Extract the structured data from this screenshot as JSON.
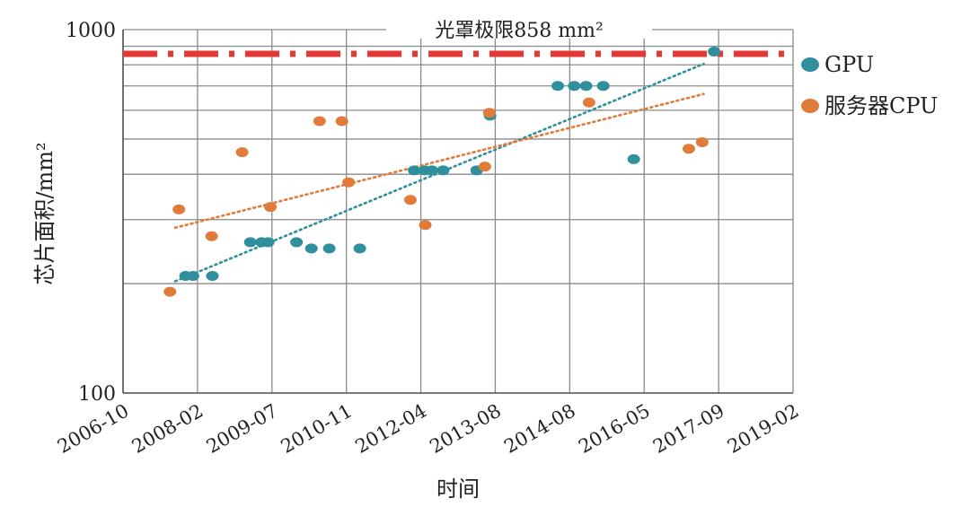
{
  "chart_data": {
    "type": "scatter",
    "title": "",
    "xlabel": "时间",
    "ylabel": "芯片面积/mm²",
    "yscale": "log",
    "ylim": [
      100,
      1000
    ],
    "y_tick_labels": [
      "100",
      "1000"
    ],
    "x_tick_labels": [
      "2006-10",
      "2008-02",
      "2009-07",
      "2010-11",
      "2012-04",
      "2013-08",
      "2014-08",
      "2016-05",
      "2017-09",
      "2019-02"
    ],
    "xlim_index": [
      0,
      9
    ],
    "grid": true,
    "legend_position": "right",
    "reference_line": {
      "label": "光罩极限858 mm²",
      "value": 858,
      "color": "#e53935"
    },
    "series": [
      {
        "name": "GPU",
        "color": "#2f8f9d",
        "points": [
          [
            0.84,
            210
          ],
          [
            0.94,
            210
          ],
          [
            1.2,
            210
          ],
          [
            1.71,
            260
          ],
          [
            1.86,
            260
          ],
          [
            1.95,
            260
          ],
          [
            2.33,
            260
          ],
          [
            2.53,
            250
          ],
          [
            2.77,
            250
          ],
          [
            3.18,
            250
          ],
          [
            3.91,
            410
          ],
          [
            4.05,
            410
          ],
          [
            4.15,
            410
          ],
          [
            4.3,
            410
          ],
          [
            4.75,
            410
          ],
          [
            4.93,
            580
          ],
          [
            5.84,
            700
          ],
          [
            6.06,
            700
          ],
          [
            6.22,
            700
          ],
          [
            6.45,
            700
          ],
          [
            6.86,
            440
          ],
          [
            7.94,
            870
          ]
        ],
        "trend": [
          [
            0.7,
            203
          ],
          [
            7.8,
            805
          ]
        ]
      },
      {
        "name": "服务器CPU",
        "color": "#e07b39",
        "points": [
          [
            0.63,
            190
          ],
          [
            0.75,
            320
          ],
          [
            1.19,
            270
          ],
          [
            1.6,
            460
          ],
          [
            1.98,
            325
          ],
          [
            2.64,
            560
          ],
          [
            2.94,
            560
          ],
          [
            3.03,
            380
          ],
          [
            3.86,
            340
          ],
          [
            4.06,
            290
          ],
          [
            4.86,
            420
          ],
          [
            4.92,
            590
          ],
          [
            6.26,
            630
          ],
          [
            7.6,
            470
          ],
          [
            7.78,
            490
          ]
        ],
        "trend": [
          [
            0.7,
            285
          ],
          [
            7.8,
            665
          ]
        ]
      }
    ]
  }
}
